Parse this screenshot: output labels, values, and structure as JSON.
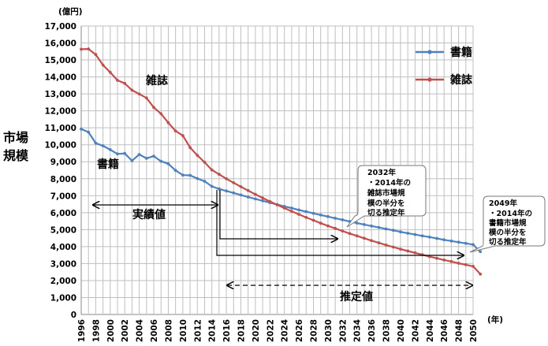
{
  "chart_data": {
    "type": "line",
    "unit_label": "(億円)",
    "x_unit_label": "(年)",
    "ylabel_lines": [
      "市場",
      "規模"
    ],
    "y_ticks": [
      "0",
      "1,000",
      "2,000",
      "3,000",
      "4,000",
      "5,000",
      "6,000",
      "7,000",
      "8,000",
      "9,000",
      "10,000",
      "11,000",
      "12,000",
      "13,000",
      "14,000",
      "15,000",
      "16,000",
      "17,000"
    ],
    "ylim": [
      0,
      17000
    ],
    "x_range": [
      1996,
      2050
    ],
    "x_ticks": [
      "1996",
      "1998",
      "2000",
      "2002",
      "2004",
      "2006",
      "2008",
      "2010",
      "2012",
      "2014",
      "2016",
      "2018",
      "2020",
      "2022",
      "2024",
      "2026",
      "2028",
      "2030",
      "2032",
      "2034",
      "2036",
      "2038",
      "2040",
      "2042",
      "2044",
      "2046",
      "2048",
      "2050"
    ],
    "grid": true,
    "legend_position": "top-right",
    "series": [
      {
        "name": "書籍",
        "color": "#4f81bd",
        "inline_label": "書籍",
        "actual": [
          10930,
          10750,
          10100,
          9940,
          9710,
          9460,
          9490,
          9060,
          9430,
          9200,
          9330,
          9030,
          8880,
          8490,
          8210,
          8200,
          8010,
          7850,
          7550
        ],
        "estimate": [
          7400,
          7280,
          7160,
          7040,
          6920,
          6810,
          6700,
          6590,
          6480,
          6370,
          6270,
          6160,
          6060,
          5960,
          5860,
          5770,
          5670,
          5580,
          5480,
          5390,
          5300,
          5210,
          5130,
          5040,
          4960,
          4870,
          4790,
          4710,
          4630,
          4560,
          4480,
          4400,
          4330,
          4260,
          4190,
          4120,
          3700
        ]
      },
      {
        "name": "雑誌",
        "color": "#c0504d",
        "inline_label": "雑誌",
        "actual": [
          15630,
          15650,
          15320,
          14700,
          14270,
          13800,
          13620,
          13220,
          12990,
          12760,
          12200,
          11830,
          11300,
          10820,
          10540,
          9840,
          9380,
          8970,
          8520
        ],
        "estimate": [
          8260,
          8000,
          7760,
          7530,
          7300,
          7080,
          6870,
          6660,
          6460,
          6270,
          6080,
          5900,
          5720,
          5550,
          5380,
          5220,
          5070,
          4920,
          4770,
          4630,
          4490,
          4350,
          4220,
          4090,
          3970,
          3850,
          3740,
          3630,
          3520,
          3410,
          3310,
          3210,
          3120,
          3020,
          2930,
          2840,
          2380
        ]
      }
    ],
    "annotations": {
      "actual_label": "実績値",
      "estimate_label": "推定値",
      "callout_2032": [
        "2032年",
        "・2014年の",
        "雑誌市場規",
        "模の半分を",
        "切る推定年"
      ],
      "callout_2049": [
        "2049年",
        "・2014年の",
        "書籍市場規",
        "模の半分を",
        "切る推定年"
      ]
    }
  }
}
